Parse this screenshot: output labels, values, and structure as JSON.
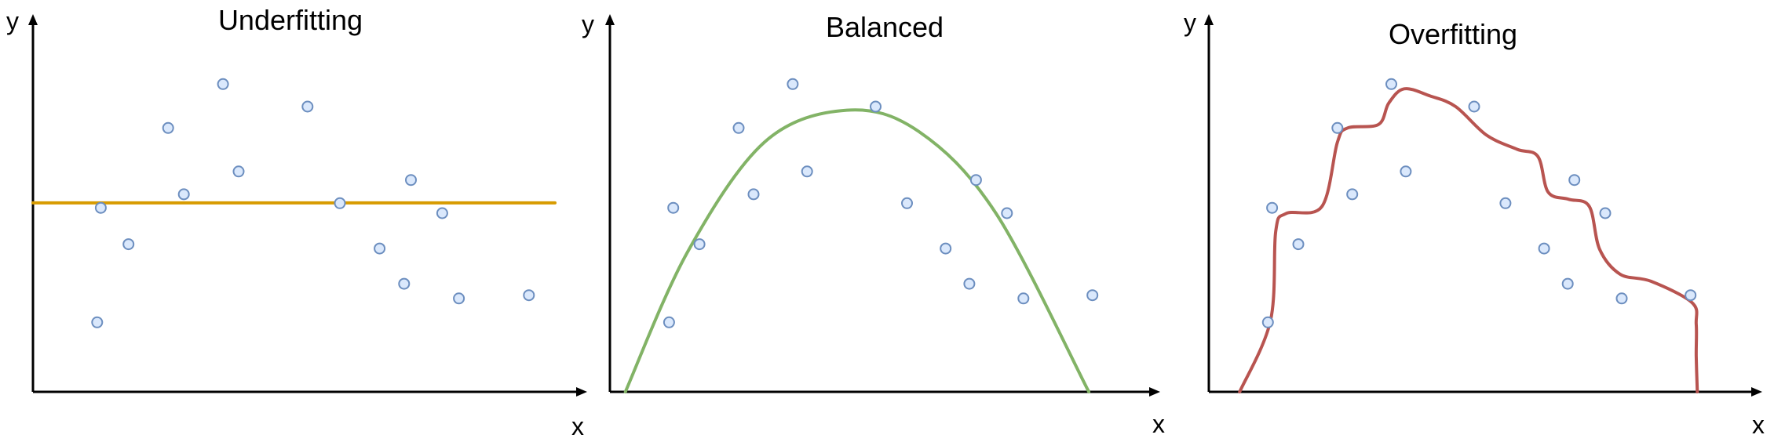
{
  "colors": {
    "point_fill": "#dae8fc",
    "point_stroke": "#6c8ebf",
    "axis": "#000000"
  },
  "chart_data": [
    {
      "type": "scatter",
      "title": "Underfitting",
      "xlabel": "x",
      "ylabel": "y",
      "xlim": [
        0,
        100
      ],
      "ylim": [
        0,
        100
      ],
      "grid": false,
      "points": [
        {
          "x": 12.3,
          "y": 19.5
        },
        {
          "x": 13.0,
          "y": 51.6
        },
        {
          "x": 18.3,
          "y": 41.4
        },
        {
          "x": 25.9,
          "y": 74.0
        },
        {
          "x": 28.9,
          "y": 55.4
        },
        {
          "x": 36.4,
          "y": 86.3
        },
        {
          "x": 39.4,
          "y": 61.8
        },
        {
          "x": 52.6,
          "y": 80.0
        },
        {
          "x": 58.8,
          "y": 52.9
        },
        {
          "x": 66.4,
          "y": 40.2
        },
        {
          "x": 71.1,
          "y": 30.3
        },
        {
          "x": 72.4,
          "y": 59.4
        },
        {
          "x": 78.4,
          "y": 50.1
        },
        {
          "x": 81.6,
          "y": 26.2
        },
        {
          "x": 95.0,
          "y": 27.1
        }
      ],
      "fit": {
        "model": "constant",
        "color": "#d79b00",
        "points": [
          [
            0,
            53.0
          ],
          [
            100,
            53.0
          ]
        ]
      }
    },
    {
      "type": "scatter",
      "title": "Balanced",
      "xlabel": "x",
      "ylabel": "y",
      "xlim": [
        0,
        100
      ],
      "ylim": [
        0,
        100
      ],
      "grid": false,
      "points": [
        {
          "x": 11.5,
          "y": 19.5
        },
        {
          "x": 12.3,
          "y": 51.6
        },
        {
          "x": 17.4,
          "y": 41.4
        },
        {
          "x": 25.0,
          "y": 74.0
        },
        {
          "x": 27.9,
          "y": 55.4
        },
        {
          "x": 35.5,
          "y": 86.3
        },
        {
          "x": 38.3,
          "y": 61.8
        },
        {
          "x": 51.6,
          "y": 80.0
        },
        {
          "x": 57.7,
          "y": 52.9
        },
        {
          "x": 65.2,
          "y": 40.2
        },
        {
          "x": 69.8,
          "y": 30.3
        },
        {
          "x": 71.1,
          "y": 59.4
        },
        {
          "x": 77.1,
          "y": 50.1
        },
        {
          "x": 80.3,
          "y": 26.2
        },
        {
          "x": 93.7,
          "y": 27.1
        }
      ],
      "fit": {
        "model": "quadratic",
        "color": "#82b366",
        "points": [
          [
            3,
            0
          ],
          [
            15,
            39
          ],
          [
            30,
            70
          ],
          [
            46,
            79
          ],
          [
            60,
            73
          ],
          [
            75,
            50
          ],
          [
            93,
            0
          ]
        ]
      }
    },
    {
      "type": "scatter",
      "title": "Overfitting",
      "xlabel": "x",
      "ylabel": "y",
      "xlim": [
        0,
        100
      ],
      "ylim": [
        0,
        100
      ],
      "grid": false,
      "points": [
        {
          "x": 11.5,
          "y": 19.5
        },
        {
          "x": 12.3,
          "y": 51.6
        },
        {
          "x": 17.4,
          "y": 41.4
        },
        {
          "x": 25.0,
          "y": 74.0
        },
        {
          "x": 27.9,
          "y": 55.4
        },
        {
          "x": 35.5,
          "y": 86.3
        },
        {
          "x": 38.3,
          "y": 61.8
        },
        {
          "x": 51.6,
          "y": 80.0
        },
        {
          "x": 57.7,
          "y": 52.9
        },
        {
          "x": 65.2,
          "y": 40.2
        },
        {
          "x": 69.8,
          "y": 30.3
        },
        {
          "x": 71.1,
          "y": 59.4
        },
        {
          "x": 77.1,
          "y": 50.1
        },
        {
          "x": 80.3,
          "y": 26.2
        },
        {
          "x": 93.7,
          "y": 27.1
        }
      ],
      "fit": {
        "model": "high-degree polynomial",
        "color": "#b85450",
        "points": [
          [
            6,
            0
          ],
          [
            12,
            20
          ],
          [
            13,
            45
          ],
          [
            15,
            50
          ],
          [
            22,
            52
          ],
          [
            25,
            70
          ],
          [
            27,
            74
          ],
          [
            33,
            75
          ],
          [
            35,
            81
          ],
          [
            38,
            85
          ],
          [
            43,
            83
          ],
          [
            48,
            80
          ],
          [
            54,
            72
          ],
          [
            60,
            68
          ],
          [
            64,
            66
          ],
          [
            66,
            56
          ],
          [
            70,
            54
          ],
          [
            74,
            52
          ],
          [
            76,
            40
          ],
          [
            80,
            33
          ],
          [
            86,
            31
          ],
          [
            94,
            25
          ],
          [
            94.8,
            19
          ],
          [
            94.8,
            10
          ],
          [
            95,
            0
          ]
        ]
      }
    }
  ]
}
